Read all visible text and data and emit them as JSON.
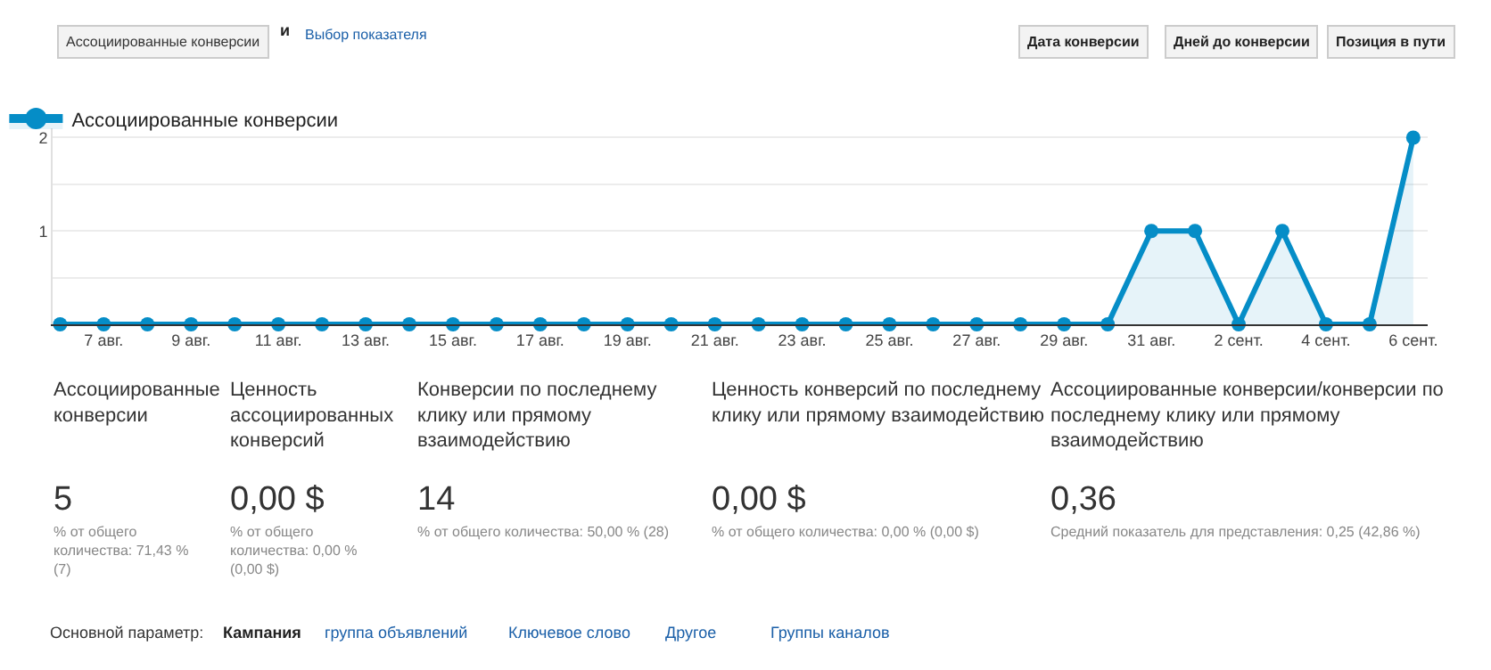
{
  "chart_data": {
    "type": "area",
    "x": [
      "--08-06",
      "--08-07",
      "--08-08",
      "--08-09",
      "--08-10",
      "--08-11",
      "--08-12",
      "--08-13",
      "--08-14",
      "--08-15",
      "--08-16",
      "--08-17",
      "--08-18",
      "--08-19",
      "--08-20",
      "--08-21",
      "--08-22",
      "--08-23",
      "--08-24",
      "--08-25",
      "--08-26",
      "--08-27",
      "--08-28",
      "--08-29",
      "--08-30",
      "--08-31",
      "--09-01",
      "--09-02",
      "--09-03",
      "--09-04",
      "--09-05",
      "--09-06"
    ],
    "series": [
      {
        "name": "Ассоциированные конверсии",
        "color": "#058dc7",
        "values": [
          0,
          0,
          0,
          0,
          0,
          0,
          0,
          0,
          0,
          0,
          0,
          0,
          0,
          0,
          0,
          0,
          0,
          0,
          0,
          0,
          0,
          0,
          0,
          0,
          0,
          1,
          1,
          0,
          1,
          0,
          0,
          2
        ]
      }
    ],
    "xticks": [
      {
        "value": "--08-07",
        "label": "7 авг."
      },
      {
        "value": "--08-09",
        "label": "9 авг."
      },
      {
        "value": "--08-11",
        "label": "11 авг."
      },
      {
        "value": "--08-13",
        "label": "13 авг."
      },
      {
        "value": "--08-15",
        "label": "15 авг."
      },
      {
        "value": "--08-17",
        "label": "17 авг."
      },
      {
        "value": "--08-19",
        "label": "19 авг."
      },
      {
        "value": "--08-21",
        "label": "21 авг."
      },
      {
        "value": "--08-23",
        "label": "23 авг."
      },
      {
        "value": "--08-25",
        "label": "25 авг."
      },
      {
        "value": "--08-27",
        "label": "27 авг."
      },
      {
        "value": "--08-29",
        "label": "29 авг."
      },
      {
        "value": "--08-31",
        "label": "31 авг."
      },
      {
        "value": "--09-02",
        "label": "2 сент."
      },
      {
        "value": "--09-04",
        "label": "4 сент."
      },
      {
        "value": "--09-06",
        "label": "6 сент."
      }
    ],
    "xlim": [
      "--08-05T20:00",
      "--09-06T08:00"
    ],
    "ylim": [
      0,
      2.1
    ],
    "yticks": [
      {
        "value": 0,
        "label": null
      },
      {
        "value": 0.5,
        "label": null
      },
      1,
      {
        "value": 1.5,
        "label": null
      },
      2
    ],
    "grid": "y",
    "legend": "top left",
    "marker": "circle",
    "line_style": "solid",
    "annotations": [
      "Ассоциированные конверсии",
      "и",
      "Выбор показателя",
      "Дата конверсии",
      "Дней до конверсии",
      "Позиция в пути",
      "Ассоциированные\nконверсии",
      "5",
      "% от общего\nколичества: 71,43 %\n(7)",
      "Ценность\nассоциированных\nконверсий",
      "0,00 $",
      "% от общего\nколичества: 0,00 %\n(0,00 $)",
      "Конверсии по последнему\nклику или прямому\nвзаимодействию",
      "14",
      "% от общего количества: 50,00 % (28)",
      "Ценность конверсий по последнему\nклику или прямому взаимодействию",
      "0,00 $",
      "% от общего количества: 0,00 % (0,00 $)",
      "Ассоциированные конверсии/конверсии по\nпоследнему клику или прямому\nвзаимодействию",
      "0,36",
      "Средний показатель для представления: 0,25 (42,86 %)",
      "Основной параметр:",
      "Кампания",
      "группа объявлений",
      "Ключевое слово",
      "Другое",
      "Группы каналов"
    ]
  }
}
